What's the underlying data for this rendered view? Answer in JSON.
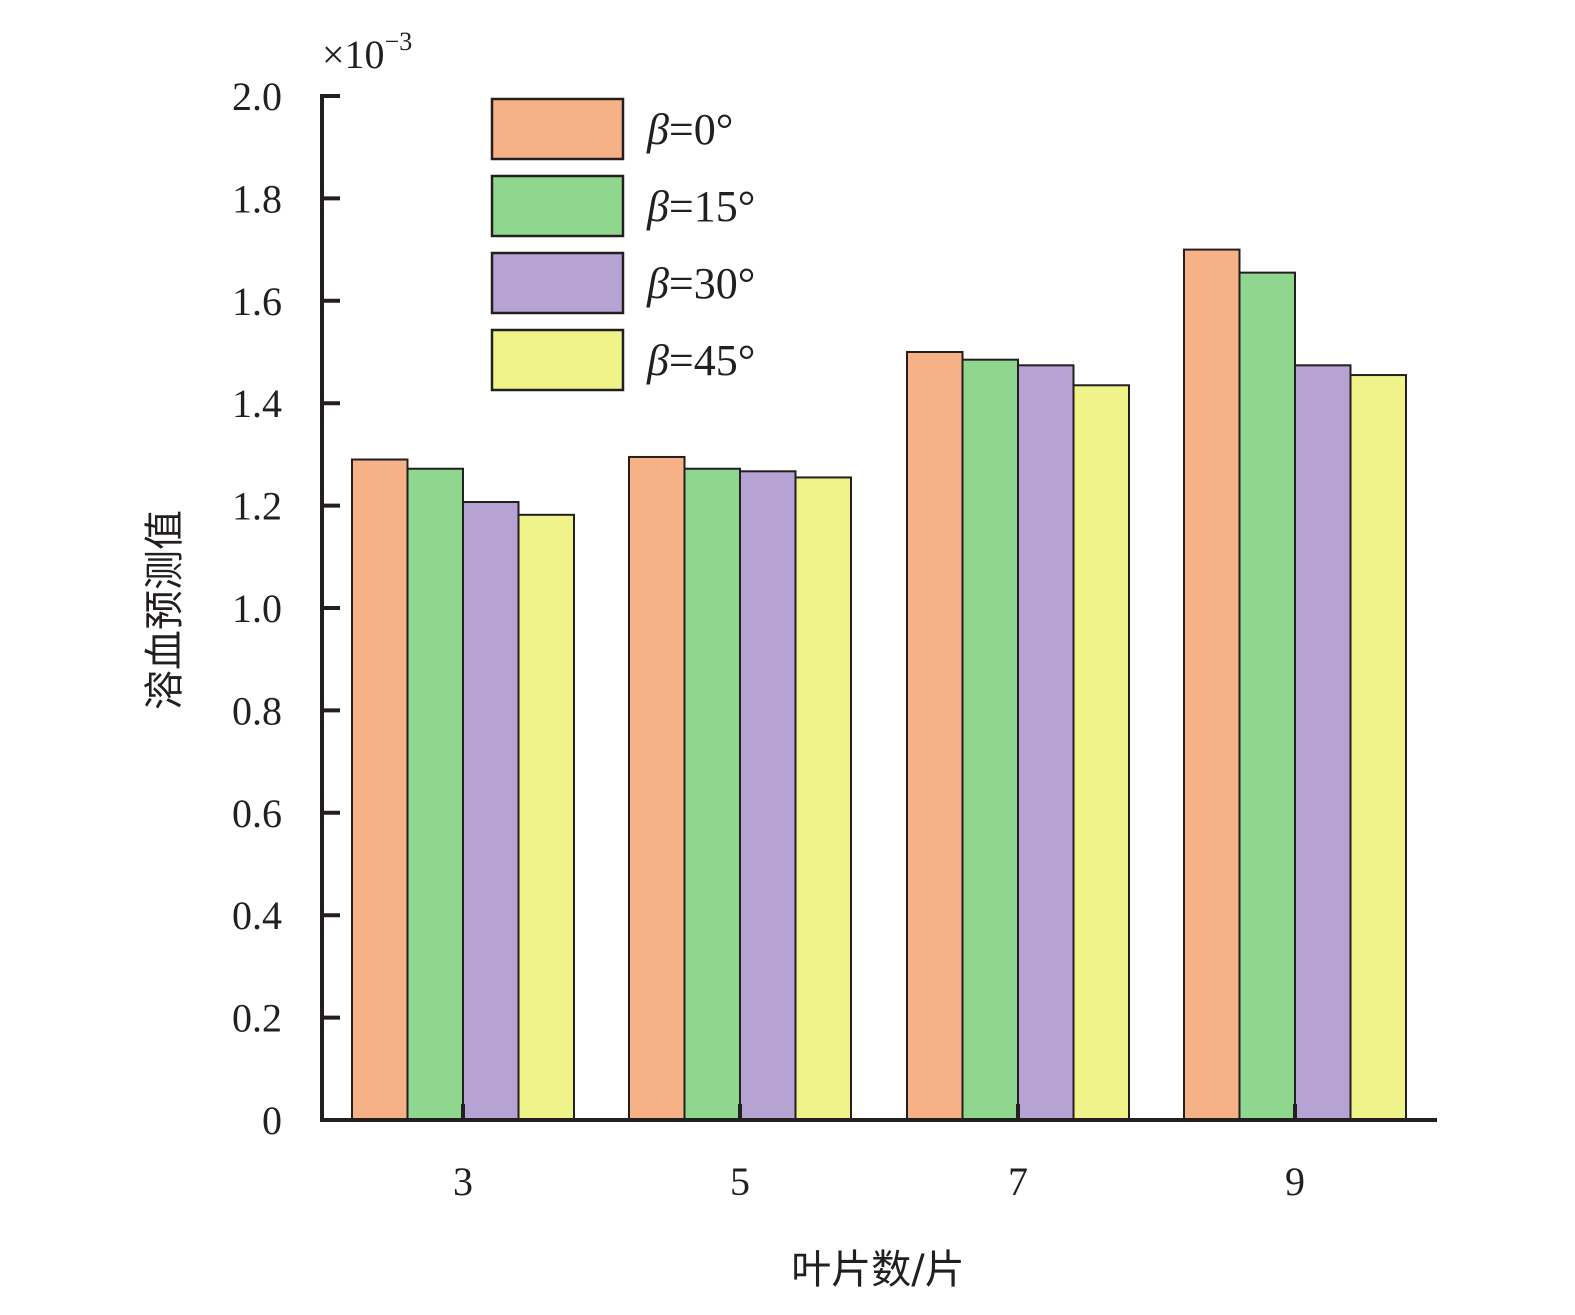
{
  "chart_data": {
    "type": "bar",
    "xlabel": "叶片数/片",
    "ylabel": "溶血预测值",
    "y_multiplier": {
      "base": "×10",
      "exponent": "−3"
    },
    "ylim": [
      0,
      2.0
    ],
    "yticks": [
      "0",
      "0.2",
      "0.4",
      "0.6",
      "0.8",
      "1.0",
      "1.2",
      "1.4",
      "1.6",
      "1.8",
      "2.0"
    ],
    "categories": [
      "3",
      "5",
      "7",
      "9"
    ],
    "series": [
      {
        "name": "β=0°",
        "symbol": "β",
        "rest": "=0°",
        "color": "#f6b286",
        "values": [
          1.29,
          1.295,
          1.5,
          1.7
        ]
      },
      {
        "name": "β=15°",
        "symbol": "β",
        "rest": "=15°",
        "color": "#8fd68f",
        "values": [
          1.272,
          1.272,
          1.485,
          1.655
        ]
      },
      {
        "name": "β=30°",
        "symbol": "β",
        "rest": "=30°",
        "color": "#b6a2d3",
        "values": [
          1.207,
          1.267,
          1.474,
          1.474
        ]
      },
      {
        "name": "β=45°",
        "symbol": "β",
        "rest": "=45°",
        "color": "#eff38a",
        "values": [
          1.182,
          1.255,
          1.435,
          1.455
        ]
      }
    ],
    "legend_position": "top-left",
    "grid": false
  }
}
